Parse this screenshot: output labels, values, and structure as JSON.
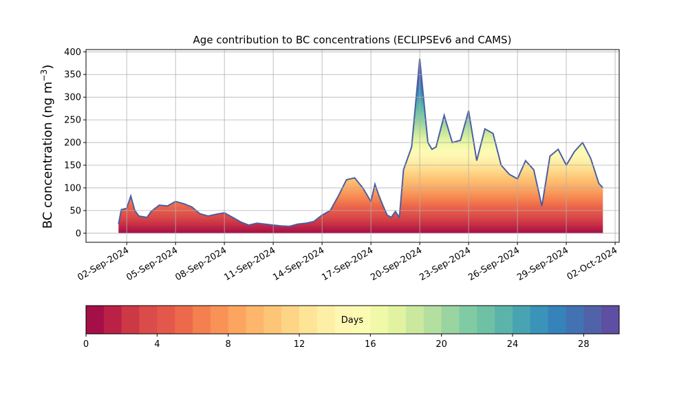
{
  "chart_data": {
    "type": "area",
    "title": "Age contribution to BC concentrations (ECLIPSEv6 and CAMS)",
    "ylabel": "BC concentration (ng m",
    "ylabel_sup": "−3",
    "ylabel_close": ")",
    "ylim": [
      -20,
      405
    ],
    "yticks": [
      0,
      50,
      100,
      150,
      200,
      250,
      300,
      350,
      400
    ],
    "xlim": [
      "2024-08-30T12:00",
      "2024-10-02T06:00"
    ],
    "xticks": [
      "2024-09-02",
      "2024-09-05",
      "2024-09-08",
      "2024-09-11",
      "2024-09-14",
      "2024-09-17",
      "2024-09-20",
      "2024-09-23",
      "2024-09-26",
      "2024-09-29",
      "2024-10-02"
    ],
    "xtick_labels": [
      "02-Sep-2024",
      "05-Sep-2024",
      "08-Sep-2024",
      "11-Sep-2024",
      "14-Sep-2024",
      "17-Sep-2024",
      "20-Sep-2024",
      "23-Sep-2024",
      "26-Sep-2024",
      "29-Sep-2024",
      "02-Oct-2024"
    ],
    "grid": true,
    "total_series": {
      "x": [
        "2024-09-01T12:00",
        "2024-09-01T16:00",
        "2024-09-02T00:00",
        "2024-09-02T06:00",
        "2024-09-02T12:00",
        "2024-09-02T18:00",
        "2024-09-03T06:00",
        "2024-09-03T12:00",
        "2024-09-04T00:00",
        "2024-09-04T12:00",
        "2024-09-05T00:00",
        "2024-09-05T12:00",
        "2024-09-06T00:00",
        "2024-09-06T12:00",
        "2024-09-07T00:00",
        "2024-09-07T12:00",
        "2024-09-08T00:00",
        "2024-09-08T12:00",
        "2024-09-09T00:00",
        "2024-09-09T12:00",
        "2024-09-10T00:00",
        "2024-09-10T12:00",
        "2024-09-11T00:00",
        "2024-09-11T12:00",
        "2024-09-12T00:00",
        "2024-09-12T12:00",
        "2024-09-13T00:00",
        "2024-09-13T12:00",
        "2024-09-14T00:00",
        "2024-09-14T12:00",
        "2024-09-15T00:00",
        "2024-09-15T12:00",
        "2024-09-16T00:00",
        "2024-09-16T12:00",
        "2024-09-17T00:00",
        "2024-09-17T06:00",
        "2024-09-17T12:00",
        "2024-09-17T18:00",
        "2024-09-18T00:00",
        "2024-09-18T06:00",
        "2024-09-18T12:00",
        "2024-09-18T18:00",
        "2024-09-19T00:00",
        "2024-09-19T12:00",
        "2024-09-20T00:00",
        "2024-09-20T12:00",
        "2024-09-20T18:00",
        "2024-09-21T00:00",
        "2024-09-21T12:00",
        "2024-09-22T00:00",
        "2024-09-22T12:00",
        "2024-09-23T00:00",
        "2024-09-23T12:00",
        "2024-09-24T00:00",
        "2024-09-24T12:00",
        "2024-09-25T00:00",
        "2024-09-25T12:00",
        "2024-09-26T00:00",
        "2024-09-26T12:00",
        "2024-09-27T00:00",
        "2024-09-27T12:00",
        "2024-09-28T00:00",
        "2024-09-28T12:00",
        "2024-09-29T00:00",
        "2024-09-29T12:00",
        "2024-09-30T00:00",
        "2024-09-30T12:00",
        "2024-10-01T00:00",
        "2024-10-01T06:00"
      ],
      "y": [
        20,
        52,
        55,
        82,
        50,
        38,
        35,
        48,
        62,
        60,
        70,
        65,
        58,
        43,
        38,
        42,
        45,
        35,
        25,
        18,
        22,
        20,
        18,
        16,
        15,
        20,
        22,
        26,
        40,
        50,
        82,
        118,
        122,
        100,
        70,
        108,
        82,
        60,
        40,
        35,
        48,
        35,
        140,
        190,
        385,
        200,
        185,
        190,
        260,
        200,
        205,
        270,
        160,
        230,
        220,
        150,
        130,
        120,
        160,
        140,
        60,
        170,
        185,
        150,
        180,
        200,
        165,
        110,
        100
      ]
    },
    "colorbar": {
      "label": "Days",
      "min": 0,
      "max": 30,
      "ticks": [
        0,
        4,
        8,
        12,
        16,
        20,
        24,
        28
      ],
      "colors": [
        "#a50f47",
        "#bb2146",
        "#cd3845",
        "#db4b49",
        "#e4584b",
        "#ec6a4b",
        "#f47f4f",
        "#f89257",
        "#fba55f",
        "#fdb66b",
        "#fdc677",
        "#fed586",
        "#fee497",
        "#feefa6",
        "#fef7b3",
        "#fbfbb3",
        "#f0f9a8",
        "#e1f3a0",
        "#cbe99e",
        "#b3df9f",
        "#99d4a1",
        "#81cba4",
        "#6ec1a5",
        "#5bb4a9",
        "#48a4b0",
        "#3a93b8",
        "#3682ba",
        "#4372b3",
        "#5163a8",
        "#5e4fa2"
      ]
    },
    "edge_color": "#4b5ea3"
  }
}
